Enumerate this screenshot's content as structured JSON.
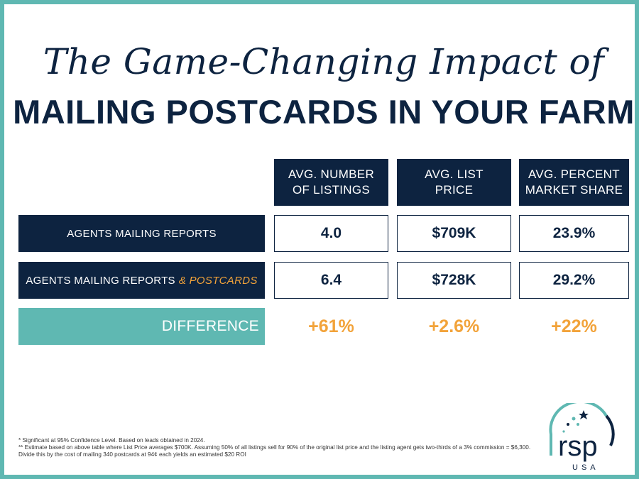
{
  "title": {
    "script_line": "The Game-Changing Impact of",
    "main_line": "MAILING POSTCARDS IN YOUR FARM"
  },
  "table": {
    "columns": [
      "AVG. NUMBER\nOF LISTINGS",
      "AVG. LIST\nPRICE",
      "AVG. PERCENT\nMARKET SHARE"
    ],
    "rows": [
      {
        "label": "AGENTS MAILING REPORTS",
        "label_accent": "",
        "values": [
          "4.0",
          "$709K",
          "23.9%"
        ]
      },
      {
        "label": "AGENTS MAILING REPORTS",
        "label_accent": "& POSTCARDS",
        "values": [
          "6.4",
          "$728K",
          "29.2%"
        ]
      }
    ],
    "difference": {
      "label": "DIFFERENCE",
      "values": [
        "+61%",
        "+2.6%",
        "+22%"
      ]
    }
  },
  "footnotes": {
    "line1": "* Significant at 95% Confidence Level. Based on leads obtained in 2024.",
    "line2": "** Estimate based on above table where List Price averages $700K. Assuming 50% of all listings sell for 90% of the original list price and the listing agent gets two-thirds of a 3% commission = $6,300. Divide this by the cost of mailing 340 postcards at 94¢ each yields an estimated $20 ROI"
  },
  "logo": {
    "name": "rsp",
    "sub": "USA"
  },
  "colors": {
    "navy": "#0d2340",
    "teal": "#5fb8b2",
    "orange": "#f2a33a"
  }
}
